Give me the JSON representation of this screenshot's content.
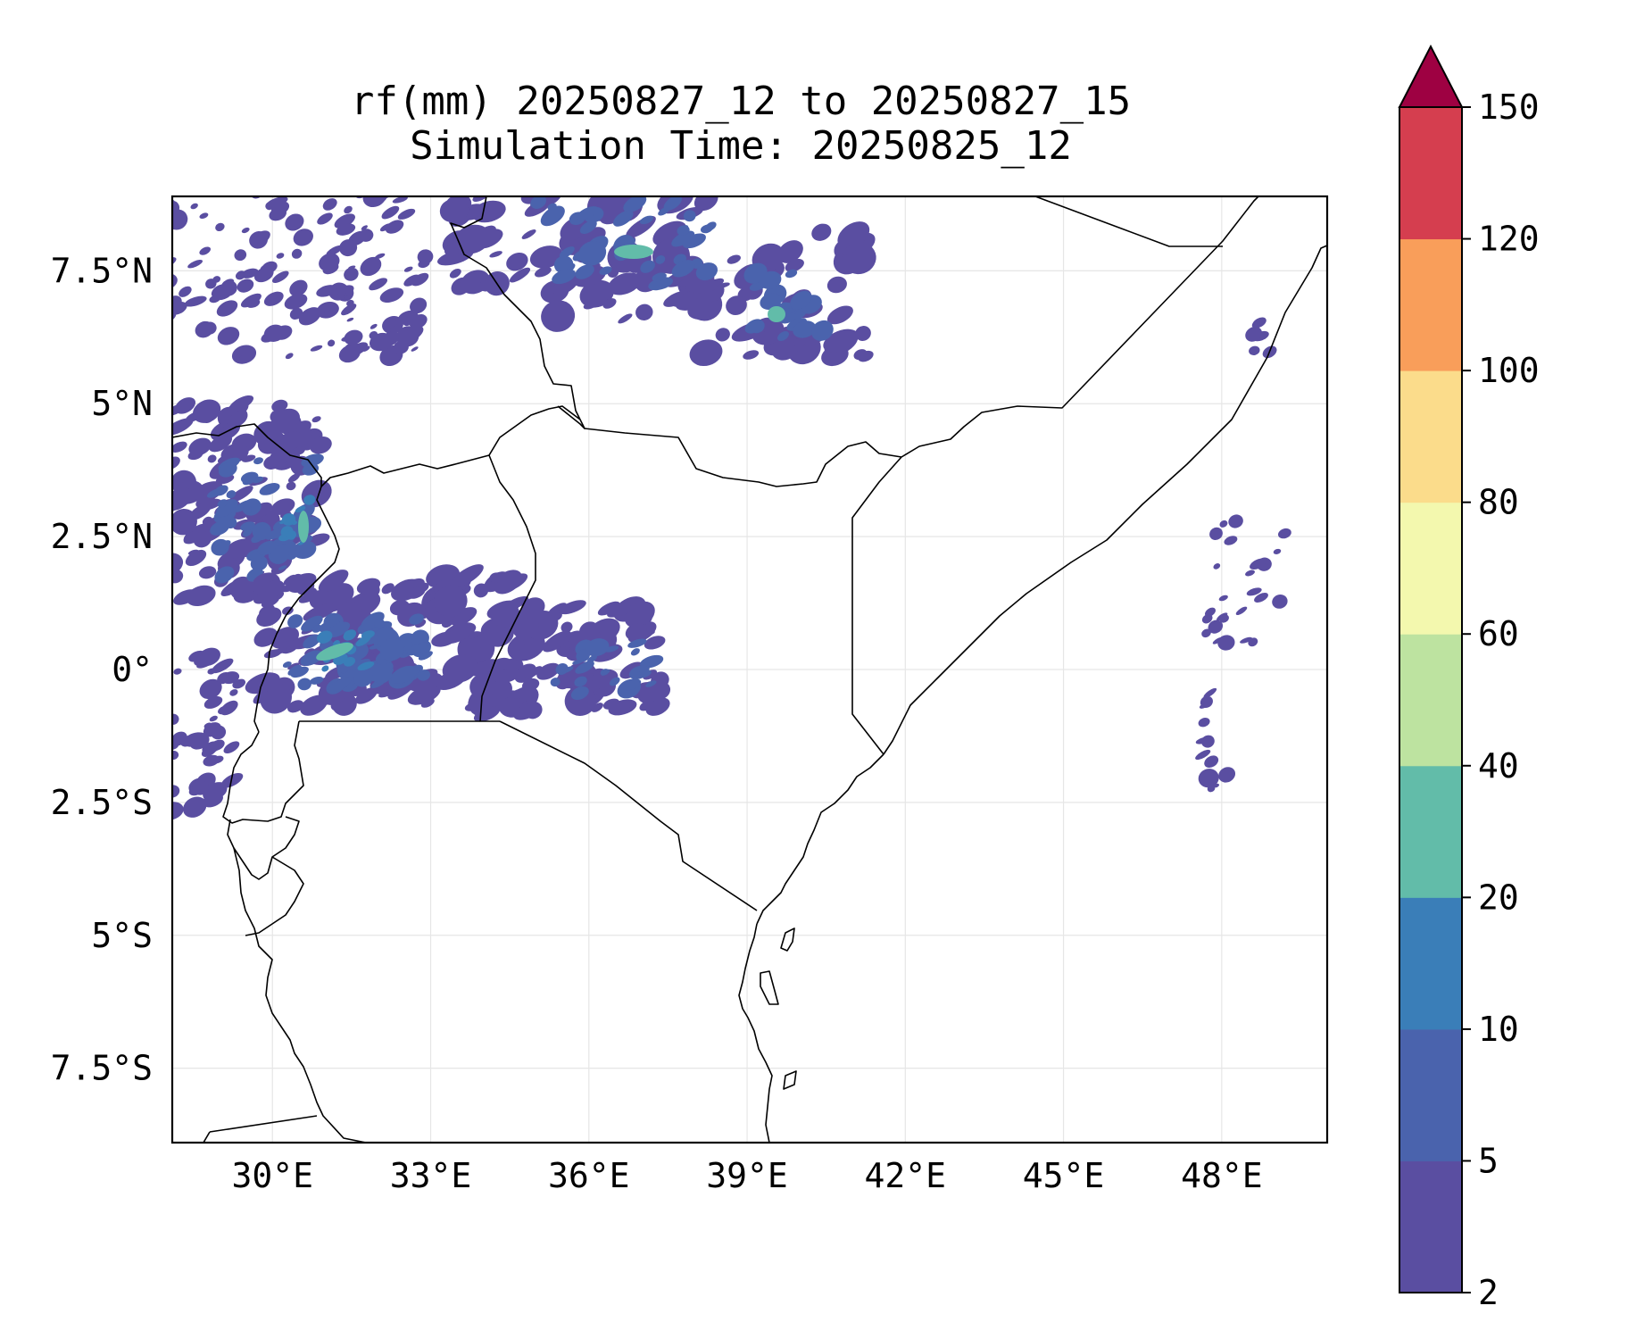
{
  "title": {
    "line1": "rf(mm) 20250827_12 to 20250827_15",
    "line2": "Simulation Time: 20250825_12"
  },
  "map": {
    "lon_range": [
      28.1,
      50.0
    ],
    "lat_range": [
      -8.9,
      8.9
    ],
    "lon_ticks": [
      "30°E",
      "33°E",
      "36°E",
      "39°E",
      "42°E",
      "45°E",
      "48°E"
    ],
    "lat_ticks": [
      "7.5°N",
      "5°N",
      "2.5°N",
      "0°",
      "2.5°S",
      "5°S",
      "7.5°S"
    ],
    "grid": true
  },
  "colorbar": {
    "levels": [
      "2",
      "5",
      "10",
      "20",
      "40",
      "60",
      "80",
      "100",
      "120",
      "150"
    ],
    "colors": [
      "#5a4ea1",
      "#4a63ad",
      "#3a7eb8",
      "#62bca9",
      "#bde3a0",
      "#f3f8ae",
      "#fbdc8b",
      "#f99e5a",
      "#d53e4f",
      "#9e0142"
    ],
    "extend": "max",
    "extend_color": "#9e0142"
  },
  "colors": {
    "rain_light": "#5a4ea1",
    "rain_mid": "#4a63ad",
    "rain_heavy": "#3a7eb8",
    "rain_peak": "#62bca9",
    "border": "#000000",
    "grid": "#e6e6e6"
  }
}
